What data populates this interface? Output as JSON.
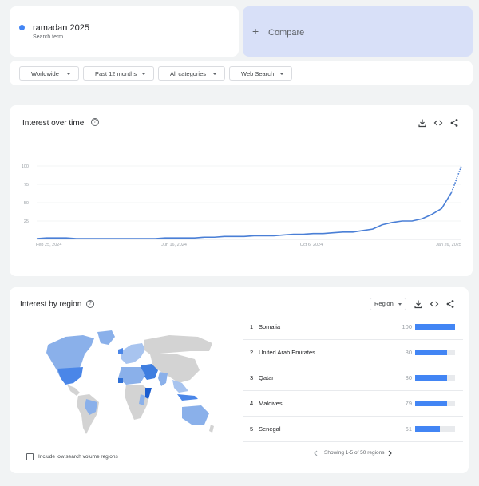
{
  "search_term": {
    "name": "ramadan 2025",
    "subtitle": "Search term",
    "color": "#4285f4"
  },
  "compare": {
    "plus": "+",
    "label": "Compare"
  },
  "filters": {
    "region": "Worldwide",
    "time": "Past 12 months",
    "category": "All categories",
    "search_type": "Web Search"
  },
  "interest_over_time": {
    "title": "Interest over time",
    "help": "?",
    "icons": [
      "download-icon",
      "embed-icon",
      "share-icon"
    ]
  },
  "chart_data": {
    "type": "line",
    "title": "",
    "xlabel": "",
    "ylabel": "",
    "ylim": [
      0,
      100
    ],
    "y_ticks": [
      "100",
      "75",
      "50",
      "25"
    ],
    "x_tick_labels": [
      "Feb 25, 2024",
      "Jun 16, 2024",
      "Oct 6, 2024",
      "Jan 26, 2025"
    ],
    "grid": true,
    "line_color": "#4a7fd6",
    "series": [
      {
        "values": [
          1,
          2,
          2,
          2,
          1,
          1,
          1,
          1,
          1,
          1,
          1,
          1,
          1,
          2,
          2,
          2,
          2,
          3,
          3,
          4,
          4,
          4,
          5,
          5,
          5,
          6,
          7,
          7,
          8,
          8,
          9,
          10,
          10,
          12,
          14,
          20,
          23,
          25,
          25,
          28,
          34,
          42,
          64,
          100
        ],
        "partial_from_index": 42
      }
    ]
  },
  "interest_by_region": {
    "title": "Interest by region",
    "help": "?",
    "select_label": "Region",
    "icons": [
      "download-icon",
      "embed-icon",
      "share-icon"
    ],
    "regions": [
      {
        "rank": "1",
        "name": "Somalia",
        "value": "100",
        "pct": 100
      },
      {
        "rank": "2",
        "name": "United Arab Emirates",
        "value": "80",
        "pct": 80
      },
      {
        "rank": "3",
        "name": "Qatar",
        "value": "80",
        "pct": 80
      },
      {
        "rank": "4",
        "name": "Maldives",
        "value": "79",
        "pct": 79
      },
      {
        "rank": "5",
        "name": "Senegal",
        "value": "61",
        "pct": 61
      }
    ],
    "checkbox_label": "Include low search volume regions",
    "pager_text": "Showing 1-5 of 50 regions",
    "bar_color": "#4285f4"
  }
}
